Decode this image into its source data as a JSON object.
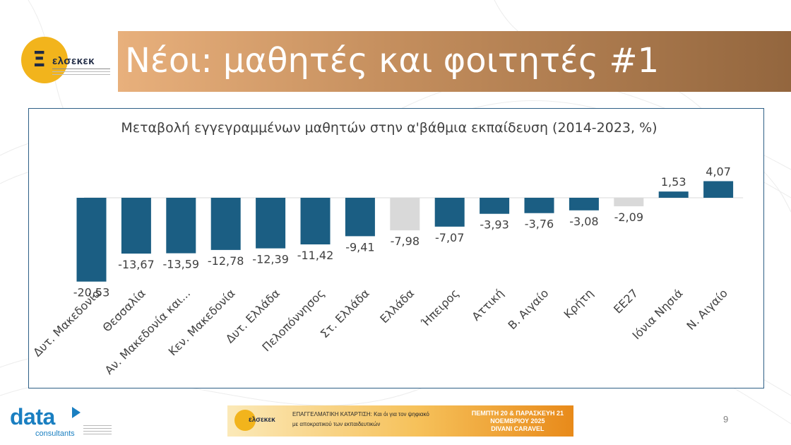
{
  "header": {
    "logo_word": "ελσεκεκ",
    "title": "Νέοι: μαθητές και φοιτητές #1"
  },
  "chart_data": {
    "type": "bar",
    "title": "Μεταβολή εγγεγραμμένων μαθητών στην α'βάθμια εκπαίδευση (2014-2023, %)",
    "categories": [
      "Δυτ. Μακεδονία",
      "Θεσσαλία",
      "Αν. Μακεδονία και...",
      "Κεν. Μακεδονία",
      "Δυτ. Ελλάδα",
      "Πελοπόννησος",
      "Στ. Ελλάδα",
      "Ελλάδα",
      "Ήπειρος",
      "Αττική",
      "Β. Αιγαίο",
      "Κρήτη",
      "ΕΕ27",
      "Ιόνια Νησιά",
      "Ν. Αιγαίο"
    ],
    "values": [
      -20.53,
      -13.67,
      -13.59,
      -12.78,
      -12.39,
      -11.42,
      -9.41,
      -7.98,
      -7.07,
      -3.93,
      -3.76,
      -3.08,
      -2.09,
      1.53,
      4.07
    ],
    "value_labels": [
      "-20,53",
      "-13,67",
      "-13,59",
      "-12,78",
      "-12,39",
      "-11,42",
      "-9,41",
      "-7,98",
      "-7,07",
      "-3,93",
      "-3,76",
      "-3,08",
      "-2,09",
      "1,53",
      "4,07"
    ],
    "highlight": [
      "Ελλάδα",
      "ΕΕ27"
    ],
    "colors": {
      "default": "#1b5e83",
      "highlight": "#d9d9d9"
    },
    "ylim": [
      -21,
      4.5
    ],
    "grid": false,
    "legend": "none"
  },
  "footer": {
    "brand": "data",
    "brand_sub": "consultants",
    "banner_logo": "ελσεκεκ",
    "banner_line1": "ΕΠΑΓΓΕΛΜΑΤΙΚΗ ΚΑΤΑΡΤΙΣΗ: Και όι για τον ψηφιακό",
    "banner_line2": "με αποκρατικού των εκπαιδευτικών",
    "banner_date1": "ΠΕΜΠΤΗ 20 & ΠΑΡΑΣΚΕΥΗ 21",
    "banner_date2": "ΝΟΕΜΒΡΙΟΥ 2025",
    "banner_date3": "DIVANI CARAVEL",
    "page_number": "9"
  }
}
